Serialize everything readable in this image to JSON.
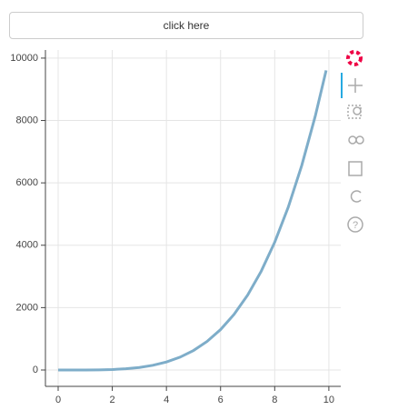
{
  "button": {
    "label": "click here"
  },
  "chart_data": {
    "type": "line",
    "x": [
      0,
      0.5,
      1,
      1.5,
      2,
      2.5,
      3,
      3.5,
      4,
      4.5,
      5,
      5.5,
      6,
      6.5,
      7,
      7.5,
      8,
      8.5,
      9,
      9.5,
      9.9
    ],
    "series": [
      {
        "color": "#7eadc9",
        "values": [
          0,
          0.0625,
          1,
          5.0625,
          16,
          39.0625,
          81,
          150.0625,
          256,
          410.0625,
          625,
          915.0625,
          1296,
          1785.0625,
          2401,
          3164.0625,
          4096,
          5220.0625,
          6561,
          8145.0625,
          9605.9601
        ]
      }
    ],
    "xlim": [
      -0.47,
      10.44
    ],
    "ylim": [
      -525,
      10260
    ],
    "xticks": [
      0,
      2,
      4,
      6,
      8,
      10
    ],
    "yticks": [
      0,
      2000,
      4000,
      6000,
      8000,
      10000
    ],
    "grid": true
  }
}
